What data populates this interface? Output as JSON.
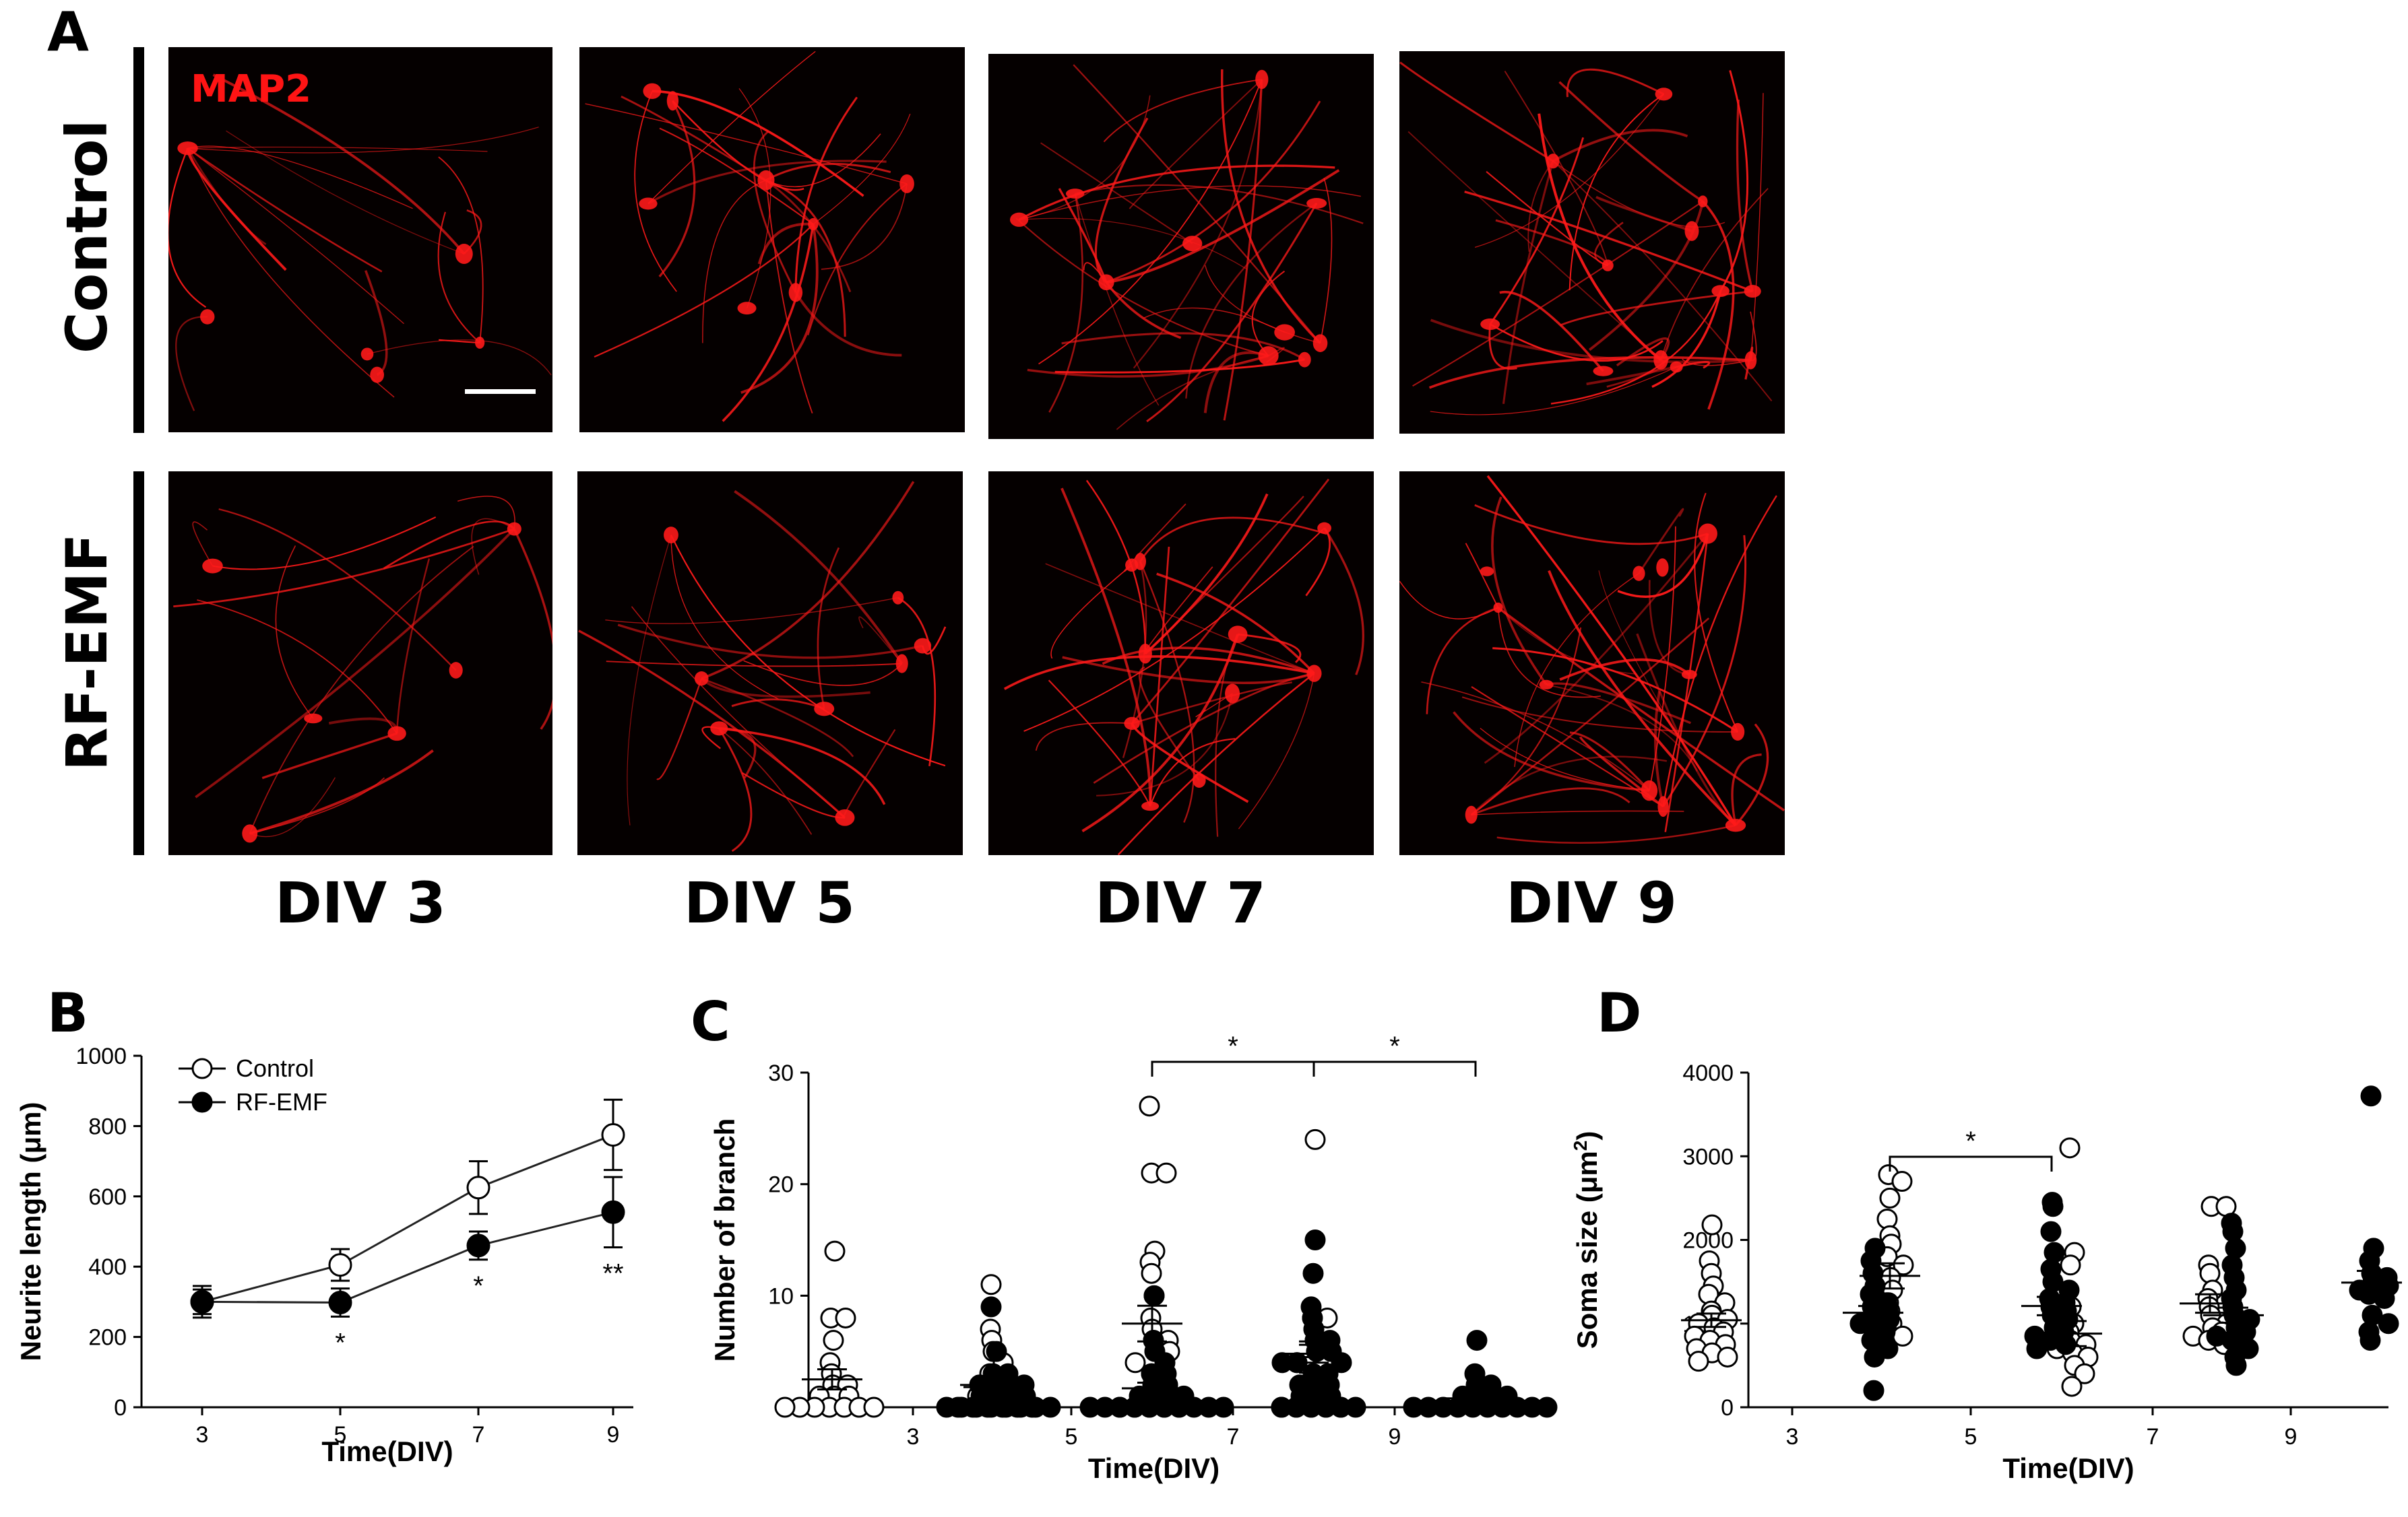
{
  "panels": {
    "A": "A",
    "B": "B",
    "C": "C",
    "D": "D"
  },
  "micrographs": {
    "stain_label": "MAP2",
    "rows": [
      "Control",
      "RF-EMF"
    ],
    "columns": [
      "DIV 3",
      "DIV 5",
      "DIV 7",
      "DIV 9"
    ],
    "stain_color": "#ff1a1a"
  },
  "chart_data": [
    {
      "panel": "B",
      "type": "line",
      "xlabel": "Time(DIV)",
      "ylabel": "Neurite length (μm)",
      "x": [
        3,
        5,
        7,
        9
      ],
      "xticks": [
        "3",
        "5",
        "7",
        "9"
      ],
      "yticks": [
        0,
        200,
        400,
        600,
        800,
        1000
      ],
      "ylim": [
        0,
        1000
      ],
      "legend": {
        "placement": "top-left",
        "entries": [
          "Control",
          "RF-EMF"
        ]
      },
      "series": [
        {
          "name": "Control",
          "marker": "open-circle",
          "values": [
            300,
            405,
            625,
            775
          ],
          "errors": [
            45,
            45,
            75,
            100
          ]
        },
        {
          "name": "RF-EMF",
          "marker": "filled-circle",
          "values": [
            300,
            298,
            460,
            555
          ],
          "errors": [
            35,
            40,
            40,
            100
          ]
        }
      ],
      "significance": [
        {
          "x": 5,
          "label": "*"
        },
        {
          "x": 7,
          "label": "*"
        },
        {
          "x": 9,
          "label": "**"
        }
      ]
    },
    {
      "panel": "C",
      "type": "scatter",
      "xlabel": "Time(DIV)",
      "ylabel": "Number of branch",
      "categories": [
        "3",
        "5",
        "7",
        "9"
      ],
      "yticks": [
        0,
        10,
        20,
        30
      ],
      "ylim": [
        0,
        30
      ],
      "series": [
        {
          "name": "Control",
          "marker": "open-circle",
          "mean": [
            2.5,
            2,
            7.5,
            4.5
          ],
          "sem": [
            0.9,
            0.8,
            1.6,
            1.4
          ],
          "points": [
            [
              14,
              8,
              8,
              6,
              4,
              3,
              2,
              2,
              1,
              1,
              1,
              0,
              0,
              0,
              0,
              0,
              0,
              0
            ],
            [
              11,
              7,
              6,
              5,
              4,
              3,
              2,
              2,
              1,
              1,
              1,
              0,
              0,
              0,
              0,
              0,
              0
            ],
            [
              27,
              21,
              21,
              14,
              13,
              12,
              10,
              8,
              7,
              6,
              6,
              5,
              5,
              4,
              3,
              2,
              2,
              1,
              0,
              0,
              0,
              0,
              0
            ],
            [
              24,
              8,
              8,
              7,
              6,
              5,
              5,
              4,
              3,
              3,
              2,
              2,
              1,
              0,
              0,
              0,
              0,
              0
            ]
          ]
        },
        {
          "name": "RF-EMF",
          "marker": "filled-circle",
          "mean": [
            1.8,
            1.7,
            4.8,
            0.8
          ],
          "sem": [
            0.5,
            0.5,
            0.8,
            0.4
          ],
          "points": [
            [
              9,
              5,
              3,
              3,
              2,
              2,
              2,
              2,
              1,
              1,
              1,
              1,
              0,
              0,
              0,
              0,
              0,
              0,
              0,
              0
            ],
            [
              10,
              6,
              5,
              4,
              3,
              3,
              2,
              2,
              1,
              1,
              1,
              1,
              0,
              0,
              0,
              0,
              0,
              0,
              0,
              0,
              0,
              0
            ],
            [
              15,
              12,
              9,
              8,
              7,
              6,
              6,
              5,
              5,
              4,
              4,
              4,
              3,
              3,
              2,
              2,
              2,
              1,
              1,
              1,
              0,
              0,
              0,
              0,
              0,
              0
            ],
            [
              6,
              3,
              2,
              2,
              1,
              1,
              1,
              1,
              0,
              0,
              0,
              0,
              0,
              0,
              0,
              0,
              0,
              0
            ]
          ]
        }
      ],
      "significance": [
        {
          "category": "7",
          "label": "*"
        },
        {
          "category": "9",
          "label": "*"
        }
      ]
    },
    {
      "panel": "D",
      "type": "scatter",
      "xlabel": "Time(DIV)",
      "ylabel": "Soma size (μm²)",
      "ylabel_text": "Soma size (μm",
      "ylabel_sup": "2",
      "ylabel_close": ")",
      "categories": [
        "3",
        "5",
        "7",
        "9"
      ],
      "yticks": [
        0,
        1000,
        2000,
        3000,
        4000
      ],
      "ylim": [
        0,
        4000
      ],
      "series": [
        {
          "name": "Control",
          "marker": "open-circle",
          "mean": [
            1040,
            1570,
            880,
            1240
          ],
          "sem": [
            80,
            150,
            150,
            110
          ],
          "points": [
            [
              2180,
              1750,
              1600,
              1450,
              1350,
              1250,
              1150,
              1100,
              1050,
              1000,
              950,
              900,
              850,
              800,
              750,
              700,
              650,
              600,
              550
            ],
            [
              2780,
              2700,
              2500,
              2250,
              2050,
              1950,
              1800,
              1700,
              1550,
              1400,
              1250,
              1150,
              1000,
              900,
              850
            ],
            [
              3100,
              1850,
              1700,
              1200,
              1000,
              900,
              800,
              750,
              700,
              650,
              600,
              500,
              400,
              250
            ],
            [
              2400,
              2400,
              1700,
              1600,
              1400,
              1300,
              1200,
              1100,
              1000,
              950,
              900,
              850,
              800,
              750
            ]
          ]
        },
        {
          "name": "RF-EMF",
          "marker": "filled-circle",
          "mean": [
            1130,
            1210,
            1100,
            1490
          ],
          "sem": [
            80,
            110,
            90,
            140
          ],
          "points": [
            [
              1900,
              1750,
              1600,
              1450,
              1350,
              1250,
              1200,
              1150,
              1100,
              1050,
              1000,
              950,
              900,
              800,
              700,
              600,
              200
            ],
            [
              2450,
              2400,
              2100,
              1850,
              1650,
              1500,
              1400,
              1300,
              1250,
              1200,
              1150,
              1100,
              1050,
              950,
              900,
              850,
              800,
              750,
              700
            ],
            [
              2200,
              2100,
              1900,
              1700,
              1550,
              1400,
              1300,
              1200,
              1100,
              1050,
              950,
              900,
              850,
              800,
              700,
              600,
              500
            ],
            [
              3720,
              1900,
              1750,
              1600,
              1550,
              1500,
              1450,
              1400,
              1350,
              1300,
              1100,
              1000,
              900,
              800
            ]
          ]
        }
      ],
      "significance": [
        {
          "category": "5",
          "label": "*"
        }
      ]
    }
  ]
}
